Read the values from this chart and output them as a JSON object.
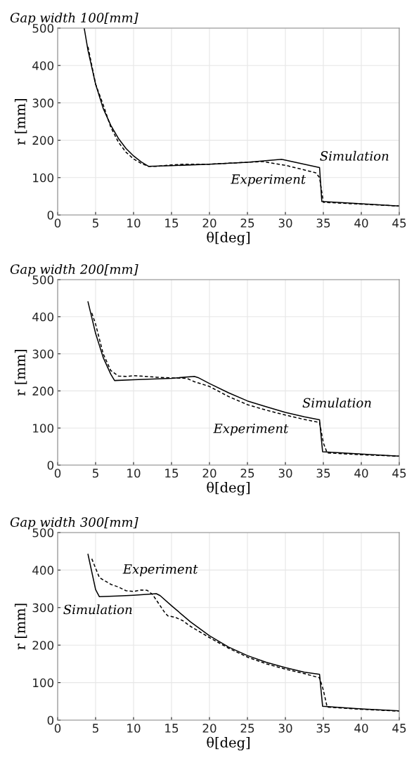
{
  "chart_data": [
    {
      "type": "line",
      "title": "Gap width 100[mm]",
      "xlabel": "θ[deg]",
      "ylabel": "r [mm]",
      "xlim": [
        0,
        45
      ],
      "ylim": [
        0,
        500
      ],
      "xticks": [
        0,
        5,
        10,
        15,
        20,
        25,
        30,
        35,
        40,
        45
      ],
      "yticks": [
        0,
        100,
        200,
        300,
        400,
        500
      ],
      "grid": true,
      "series": [
        {
          "name": "Simulation",
          "color": "#000000",
          "line_style": "solid",
          "x": [
            3.5,
            4,
            5,
            6,
            7,
            8,
            9,
            10,
            11,
            12,
            15,
            20,
            25,
            29.5,
            34.5,
            34.8,
            40,
            45
          ],
          "values": [
            500,
            440,
            350,
            285,
            240,
            205,
            178,
            158,
            142,
            130,
            132,
            136,
            141,
            149,
            127,
            36,
            30,
            24
          ]
        },
        {
          "name": "Experiment",
          "color": "#000000",
          "line_style": "dashed",
          "x": [
            4,
            5,
            6,
            7,
            8,
            9,
            10,
            11,
            12,
            13,
            15,
            17,
            20,
            25,
            27,
            30,
            34,
            34.5,
            35,
            40,
            45
          ],
          "values": [
            450,
            350,
            295,
            235,
            195,
            168,
            150,
            138,
            130,
            130,
            134,
            136,
            136,
            141,
            143,
            133,
            113,
            100,
            34,
            29,
            24
          ]
        }
      ]
    },
    {
      "type": "line",
      "title": "Gap width 200[mm]",
      "xlabel": "θ[deg]",
      "ylabel": "r [mm]",
      "xlim": [
        0,
        45
      ],
      "ylim": [
        0,
        500
      ],
      "xticks": [
        0,
        5,
        10,
        15,
        20,
        25,
        30,
        35,
        40,
        45
      ],
      "yticks": [
        0,
        100,
        200,
        300,
        400,
        500
      ],
      "grid": true,
      "series": [
        {
          "name": "Simulation",
          "color": "#000000",
          "line_style": "solid",
          "x": [
            4,
            5,
            6,
            7,
            7.5,
            10,
            15,
            18,
            18.5,
            20,
            22.5,
            25,
            27.5,
            30,
            32.5,
            34.5,
            34.9,
            40,
            45
          ],
          "values": [
            440,
            355,
            290,
            245,
            228,
            230,
            234,
            239,
            236,
            220,
            195,
            173,
            157,
            142,
            130,
            122,
            36,
            30,
            24
          ]
        },
        {
          "name": "Experiment",
          "color": "#000000",
          "line_style": "dashed",
          "x": [
            4.5,
            5,
            6,
            7,
            8,
            9,
            10,
            11,
            13,
            15,
            17,
            18,
            20,
            22.5,
            25,
            27.5,
            30,
            32.5,
            34.5,
            35,
            35.5,
            40,
            45
          ],
          "values": [
            410,
            380,
            300,
            255,
            240,
            239,
            241,
            240,
            237,
            235,
            234,
            225,
            212,
            185,
            163,
            148,
            135,
            123,
            115,
            60,
            33,
            28,
            24
          ]
        }
      ]
    },
    {
      "type": "line",
      "title": "Gap width 300[mm]",
      "xlabel": "θ[deg]",
      "ylabel": "r [mm]",
      "xlim": [
        0,
        45
      ],
      "ylim": [
        0,
        500
      ],
      "xticks": [
        0,
        5,
        10,
        15,
        20,
        25,
        30,
        35,
        40,
        45
      ],
      "yticks": [
        0,
        100,
        200,
        300,
        400,
        500
      ],
      "grid": true,
      "series": [
        {
          "name": "Simulation",
          "color": "#000000",
          "line_style": "solid",
          "x": [
            4,
            5,
            5.5,
            8,
            10,
            13,
            13.5,
            15,
            17.5,
            20,
            22.5,
            25,
            27.5,
            30,
            32.5,
            34.5,
            34.9,
            40,
            45
          ],
          "values": [
            442,
            348,
            329,
            331,
            333,
            337,
            332,
            305,
            262,
            225,
            195,
            172,
            154,
            140,
            128,
            122,
            37,
            30,
            25
          ]
        },
        {
          "name": "Experiment",
          "color": "#000000",
          "line_style": "dashed",
          "x": [
            4.5,
            5,
            5.5,
            7,
            8,
            9,
            10,
            11,
            11.8,
            12.5,
            13.5,
            14,
            14.5,
            15.5,
            16.5,
            17.5,
            20,
            22.5,
            25,
            27.5,
            30,
            32.5,
            34.5,
            35,
            35.5,
            40,
            45
          ],
          "values": [
            430,
            405,
            380,
            362,
            355,
            345,
            343,
            347,
            346,
            335,
            305,
            290,
            278,
            274,
            265,
            250,
            220,
            192,
            168,
            150,
            136,
            124,
            113,
            80,
            35,
            29,
            24
          ]
        }
      ]
    }
  ]
}
